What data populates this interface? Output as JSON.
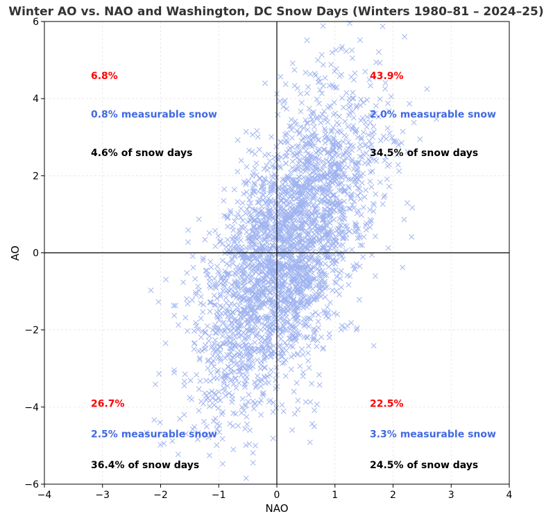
{
  "chart_data": {
    "type": "scatter",
    "title": "Winter AO vs. NAO and Washington, DC Snow Days (Winters 1980–81 – 2024–25)",
    "xlabel": "NAO",
    "ylabel": "AO",
    "xlim": [
      -4,
      4
    ],
    "ylim": [
      -6,
      6
    ],
    "xticks": [
      -4,
      -3,
      -2,
      -1,
      0,
      1,
      2,
      3,
      4
    ],
    "yticks": [
      -6,
      -4,
      -2,
      0,
      2,
      4,
      6
    ],
    "grid": true,
    "marker": "x",
    "marker_color": "#4169e1",
    "points_distribution": {
      "n": 3000,
      "seed": 12345,
      "x_mean": 0.15,
      "x_sd": 0.75,
      "y_mean": 0.0,
      "y_sd": 2.0,
      "correlation": 0.6
    },
    "quadrant_annotations": [
      {
        "quadrant": "top-left",
        "x": -3.2,
        "y_values": [
          4.6,
          3.6,
          2.6
        ],
        "pct": "6.8%",
        "measurable": "0.8% measurable snow",
        "snow_days": "4.6% of snow days"
      },
      {
        "quadrant": "top-right",
        "x": 1.6,
        "y_values": [
          4.6,
          3.6,
          2.6
        ],
        "pct": "43.9%",
        "measurable": "2.0% measurable snow",
        "snow_days": "34.5% of snow days"
      },
      {
        "quadrant": "bottom-left",
        "x": -3.2,
        "y_values": [
          -3.9,
          -4.7,
          -5.5
        ],
        "pct": "26.7%",
        "measurable": "2.5% measurable snow",
        "snow_days": "36.4% of snow days"
      },
      {
        "quadrant": "bottom-right",
        "x": 1.6,
        "y_values": [
          -3.9,
          -4.7,
          -5.5
        ],
        "pct": "22.5%",
        "measurable": "3.3% measurable snow",
        "snow_days": "24.5% of snow days"
      }
    ],
    "colors": {
      "pct": "#ff0000",
      "measurable": "#4169e1",
      "snow_days": "#000000",
      "title": "#333333"
    }
  }
}
